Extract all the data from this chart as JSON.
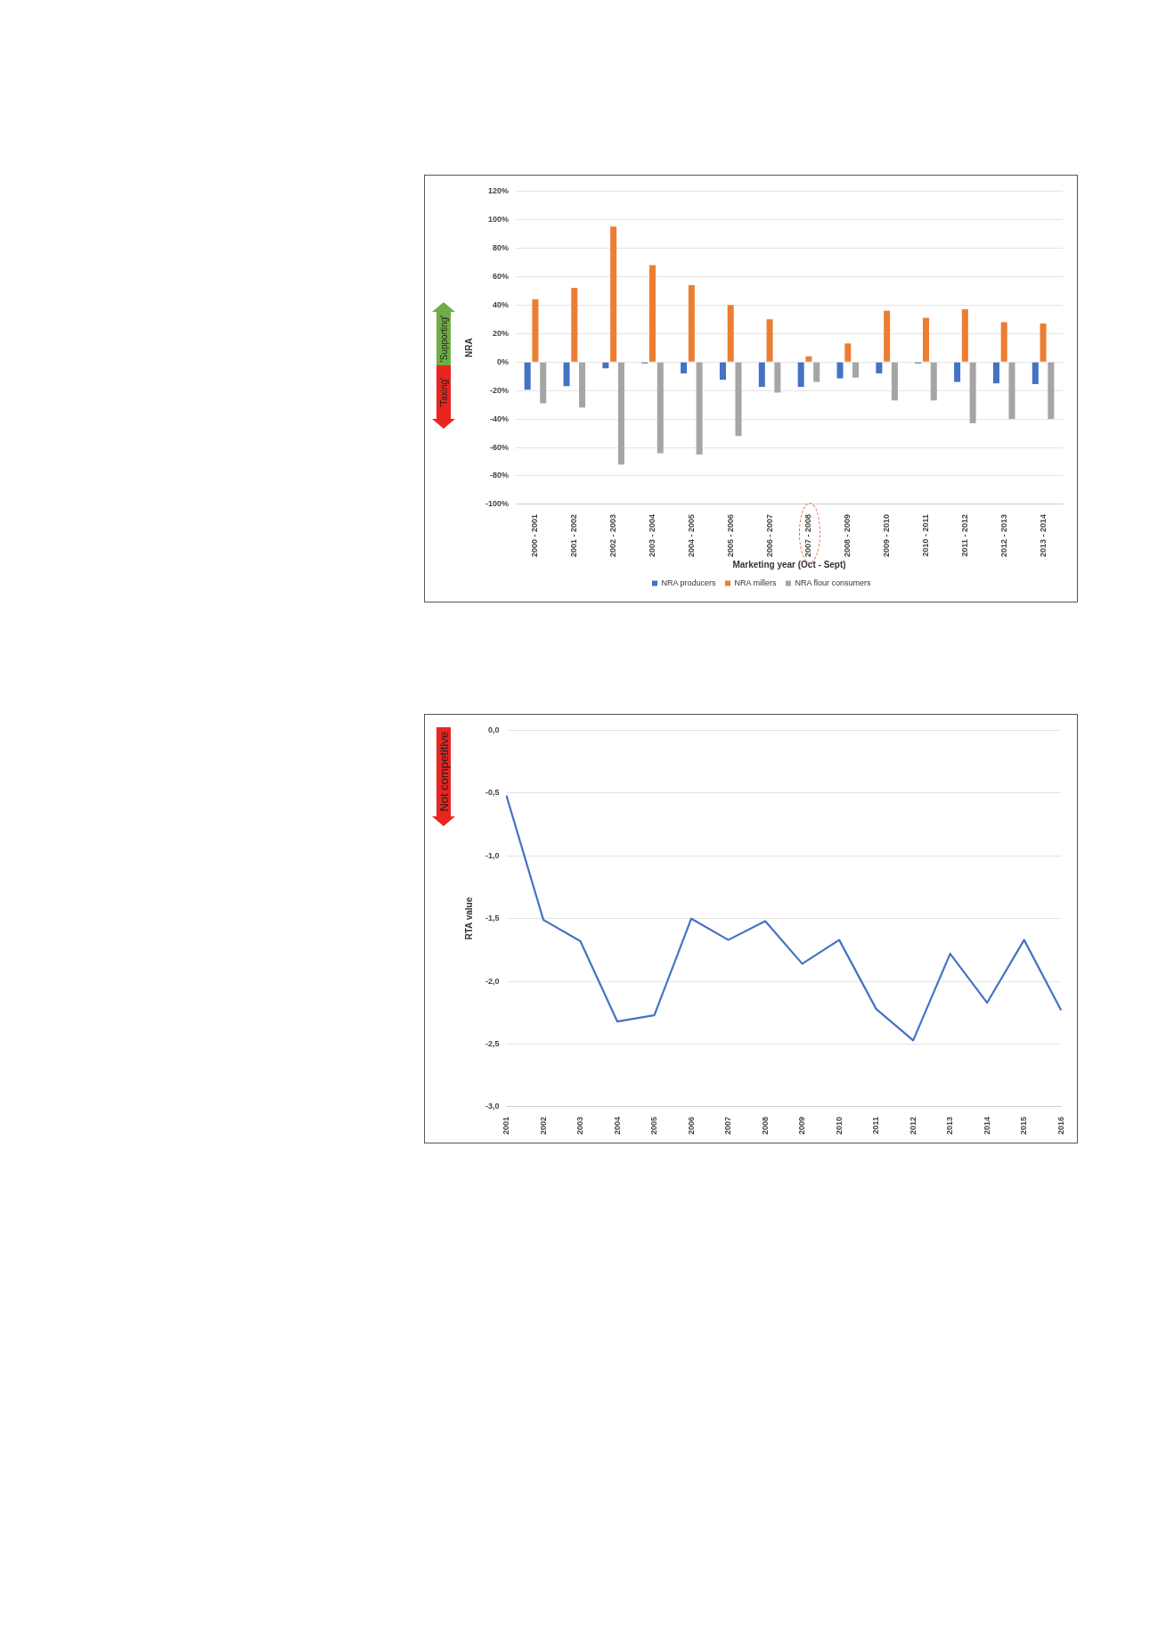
{
  "chart_data": [
    {
      "type": "bar",
      "xlabel": "Marketing year (Oct - Sept)",
      "ylabel": "NRA",
      "categories": [
        "2000 - 2001",
        "2001 - 2002",
        "2002 - 2003",
        "2003 - 2004",
        "2004 - 2005",
        "2005 - 2006",
        "2006 - 2007",
        "2007 - 2008",
        "2008 - 2009",
        "2009 - 2010",
        "2010 - 2011",
        "2011 - 2012",
        "2012 - 2013",
        "2013 - 2014"
      ],
      "series": [
        {
          "name": "NRA producers",
          "color": "#4472c4",
          "values": [
            -19.5,
            -17,
            -4.5,
            -1,
            -8,
            -12.5,
            -17.5,
            -17.5,
            -11.5,
            -8,
            -1,
            -14,
            -15,
            -15.5
          ]
        },
        {
          "name": "NRA millers",
          "color": "#ed7d31",
          "values": [
            44,
            52,
            95,
            68,
            54,
            40,
            30,
            4,
            13,
            36,
            31,
            37,
            28,
            27
          ]
        },
        {
          "name": "NRA flour consumers",
          "color": "#a5a5a5",
          "values": [
            -29,
            -32,
            -72,
            -64,
            -65,
            -52,
            -21.5,
            -14,
            -11,
            -27,
            -27,
            -43,
            -40,
            -40
          ]
        }
      ],
      "ylim": [
        -100,
        120
      ],
      "yticks": [
        {
          "value": -100,
          "label": "-100%"
        },
        {
          "value": -80,
          "label": "-80%"
        },
        {
          "value": -60,
          "label": "-60%"
        },
        {
          "value": -40,
          "label": "-40%"
        },
        {
          "value": -20,
          "label": "-20%"
        },
        {
          "value": 0,
          "label": "0%"
        },
        {
          "value": 20,
          "label": "20%"
        },
        {
          "value": 40,
          "label": "40%"
        },
        {
          "value": 60,
          "label": "60%"
        },
        {
          "value": 80,
          "label": "80%"
        },
        {
          "value": 100,
          "label": "100%"
        },
        {
          "value": 120,
          "label": "120%"
        }
      ],
      "grid": "y",
      "legend": "bottom",
      "annotations": [
        "'Supporting'",
        "'Taxing'"
      ]
    },
    {
      "type": "line",
      "ylabel": "RTA value",
      "categories": [
        "2001",
        "2002",
        "2003",
        "2004",
        "2005",
        "2006",
        "2007",
        "2008",
        "2009",
        "2010",
        "2011",
        "2012",
        "2013",
        "2014",
        "2015",
        "2016"
      ],
      "series": [
        {
          "color": "#4472c4",
          "values": [
            -0.52,
            -1.51,
            -1.68,
            -2.32,
            -2.27,
            -1.5,
            -1.67,
            -1.52,
            -1.86,
            -1.67,
            -2.22,
            -2.47,
            -1.78,
            -2.17,
            -1.67,
            -2.23
          ]
        }
      ],
      "ylim": [
        -3,
        0
      ],
      "yticks": [
        {
          "value": -3,
          "label": "-3,0"
        },
        {
          "value": -2.5,
          "label": "-2,5"
        },
        {
          "value": -2,
          "label": "-2,0"
        },
        {
          "value": -1.5,
          "label": "-1,5"
        },
        {
          "value": -1,
          "label": "-1,0"
        },
        {
          "value": -0.5,
          "label": "-0,5"
        },
        {
          "value": 0,
          "label": "0,0"
        }
      ],
      "grid": "y",
      "legend": false,
      "marker": "none",
      "line_style": "solid",
      "annotations": [
        "Not competitive"
      ]
    }
  ]
}
